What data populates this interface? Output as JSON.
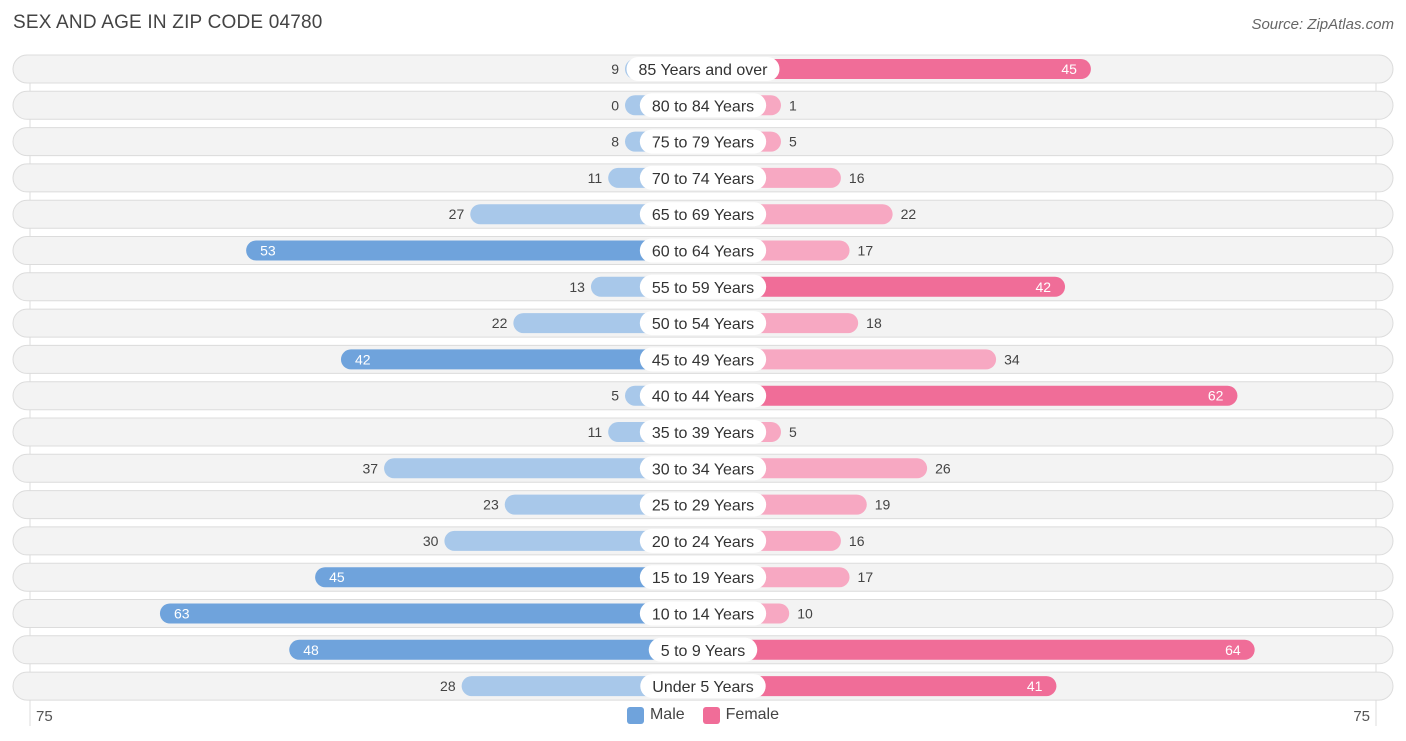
{
  "title": "SEX AND AGE IN ZIP CODE 04780",
  "source": "Source: ZipAtlas.com",
  "legend": {
    "male": "Male",
    "female": "Female"
  },
  "colors": {
    "male_strong": "#6fa3dc",
    "male_light": "#a8c8ea",
    "female_strong": "#f06d98",
    "female_light": "#f7a8c2",
    "row_bg": "#eeeeee"
  },
  "chart_data": {
    "type": "bar",
    "orientation": "horizontal-butterfly",
    "title": "SEX AND AGE IN ZIP CODE 04780",
    "categories": [
      "85 Years and over",
      "80 to 84 Years",
      "75 to 79 Years",
      "70 to 74 Years",
      "65 to 69 Years",
      "60 to 64 Years",
      "55 to 59 Years",
      "50 to 54 Years",
      "45 to 49 Years",
      "40 to 44 Years",
      "35 to 39 Years",
      "30 to 34 Years",
      "25 to 29 Years",
      "20 to 24 Years",
      "15 to 19 Years",
      "10 to 14 Years",
      "5 to 9 Years",
      "Under 5 Years"
    ],
    "series": [
      {
        "name": "Male",
        "values": [
          9,
          0,
          8,
          11,
          27,
          53,
          13,
          22,
          42,
          5,
          11,
          37,
          23,
          30,
          45,
          63,
          48,
          28
        ]
      },
      {
        "name": "Female",
        "values": [
          45,
          1,
          5,
          16,
          22,
          17,
          42,
          18,
          34,
          62,
          5,
          26,
          19,
          16,
          17,
          10,
          64,
          41
        ]
      }
    ],
    "xlim": [
      -75,
      75
    ],
    "axis_labels": {
      "left": "75",
      "right": "75"
    },
    "legend_position": "bottom-center"
  }
}
